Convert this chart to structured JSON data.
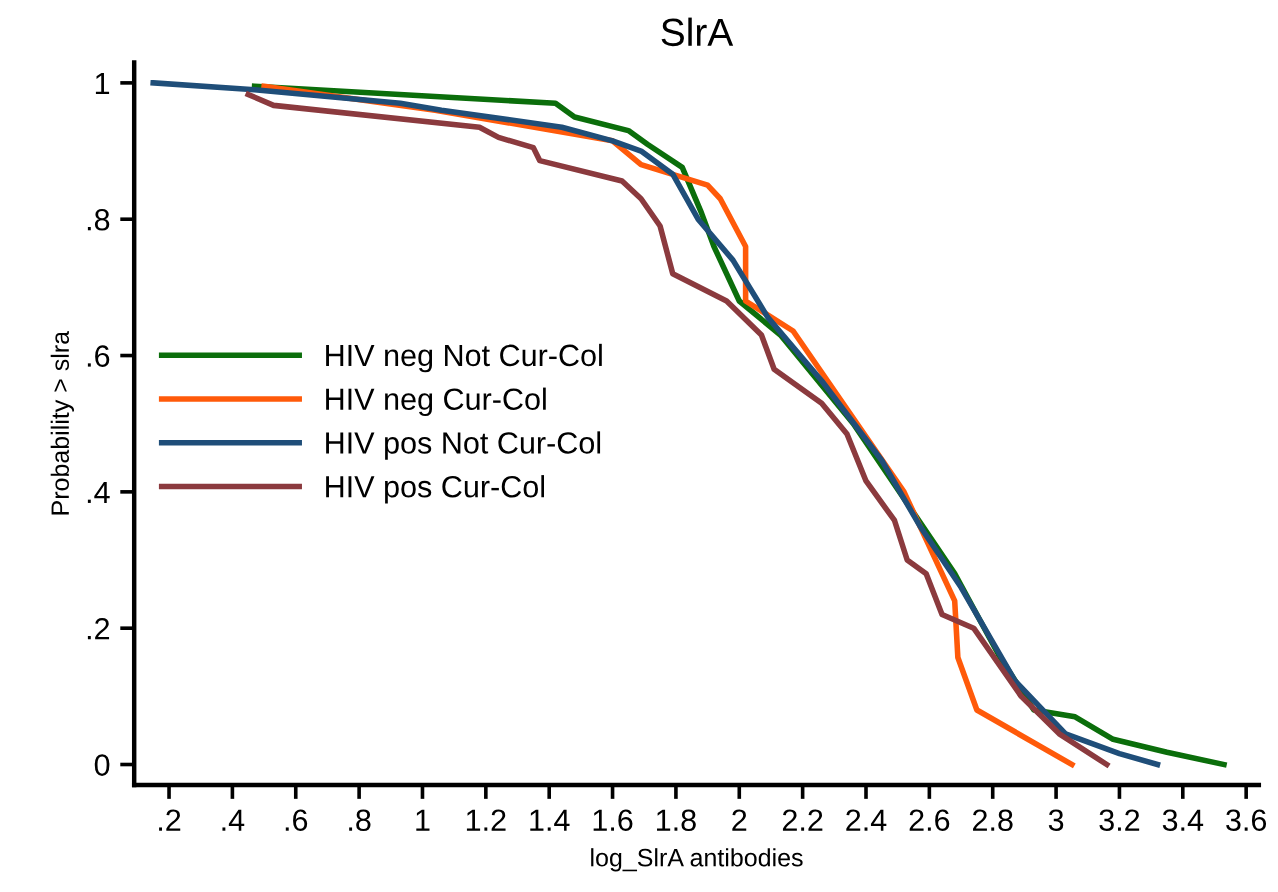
{
  "chart_data": {
    "type": "line",
    "title": "SlrA",
    "xlabel": "log_SlrA antibodies",
    "ylabel": "Probability > slra",
    "xlim": [
      0.09,
      3.64
    ],
    "ylim": [
      -0.03,
      1.03
    ],
    "xticks": [
      {
        "value": 0.2,
        "label": ".2"
      },
      {
        "value": 0.4,
        "label": ".4"
      },
      {
        "value": 0.6,
        "label": ".6"
      },
      {
        "value": 0.8,
        "label": ".8"
      },
      1,
      1.2,
      1.4,
      1.6,
      1.8,
      2,
      2.2,
      2.4,
      2.6,
      2.8,
      3,
      3.2,
      3.4,
      3.6
    ],
    "yticks": [
      0,
      {
        "value": 0.2,
        "label": ".2"
      },
      {
        "value": 0.4,
        "label": ".4"
      },
      {
        "value": 0.6,
        "label": ".6"
      },
      {
        "value": 0.8,
        "label": ".8"
      },
      1
    ],
    "grid": false,
    "legend": "left",
    "marker": "none",
    "line_style": "solid",
    "series": [
      {
        "name": "HIV neg Not Cur-Col",
        "color": "#0b6e0b",
        "x": [
          0.47,
          1.42,
          1.48,
          1.65,
          1.71,
          1.82,
          1.88,
          1.92,
          2.0,
          2.13,
          2.36,
          2.51,
          2.68,
          2.82,
          2.93,
          3.06,
          3.18,
          3.35,
          3.53
        ],
        "values": [
          0.995,
          0.97,
          0.95,
          0.93,
          0.91,
          0.876,
          0.81,
          0.76,
          0.68,
          0.63,
          0.5,
          0.397,
          0.28,
          0.16,
          0.08,
          0.07,
          0.037,
          0.018,
          0.0
        ]
      },
      {
        "name": "HIV neg Cur-Col",
        "color": "#ff5a0a",
        "x": [
          0.5,
          1.04,
          1.6,
          1.69,
          1.9,
          1.94,
          2.02,
          2.02,
          2.17,
          2.52,
          2.68,
          2.69,
          2.75,
          3.05
        ],
        "values": [
          0.995,
          0.96,
          0.915,
          0.88,
          0.85,
          0.83,
          0.76,
          0.68,
          0.636,
          0.4,
          0.24,
          0.157,
          0.08,
          0.0
        ]
      },
      {
        "name": "HIV pos Not Cur-Col",
        "color": "#1f4e79",
        "x": [
          0.15,
          0.47,
          0.93,
          1.06,
          1.44,
          1.6,
          1.69,
          1.79,
          1.87,
          1.98,
          2.09,
          2.26,
          2.45,
          2.57,
          2.7,
          2.87,
          3.03,
          3.2,
          3.32
        ],
        "values": [
          1.0,
          0.99,
          0.97,
          0.96,
          0.935,
          0.915,
          0.9,
          0.866,
          0.8,
          0.74,
          0.656,
          0.563,
          0.446,
          0.35,
          0.26,
          0.123,
          0.045,
          0.016,
          0.0
        ]
      },
      {
        "name": "HIV pos Cur-Col",
        "color": "#8b3a3e",
        "x": [
          0.45,
          0.53,
          1.18,
          1.24,
          1.35,
          1.37,
          1.63,
          1.69,
          1.75,
          1.79,
          1.96,
          2.07,
          2.11,
          2.26,
          2.34,
          2.4,
          2.49,
          2.53,
          2.59,
          2.64,
          2.74,
          2.89,
          3.01,
          3.16
        ],
        "values": [
          0.983,
          0.967,
          0.935,
          0.92,
          0.905,
          0.886,
          0.856,
          0.83,
          0.79,
          0.72,
          0.68,
          0.63,
          0.58,
          0.53,
          0.485,
          0.416,
          0.358,
          0.3,
          0.28,
          0.22,
          0.2,
          0.1,
          0.045,
          0.0
        ]
      }
    ]
  }
}
